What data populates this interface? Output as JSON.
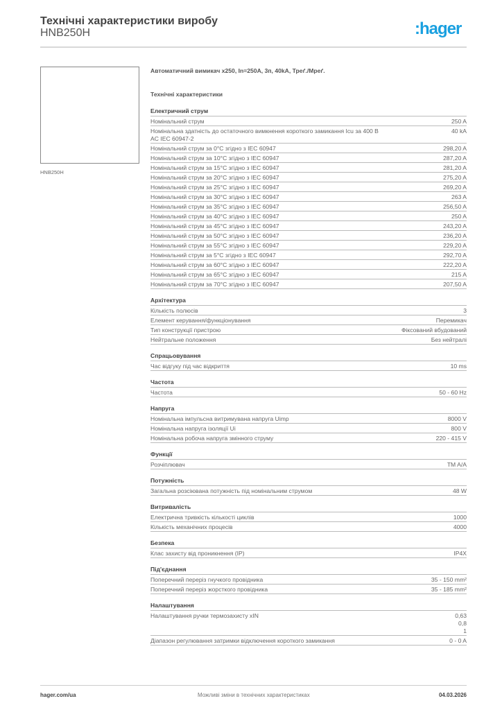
{
  "header": {
    "title": "Технічні характеристики виробу",
    "subtitle": "HNB250H",
    "logo": ":hager"
  },
  "product": {
    "image_label": "HNB250H",
    "description": "Автоматичний вимикач x250, In=250A, 3п, 40kA, Треґ./Мреґ.",
    "specs_title": "Технічні характеристики"
  },
  "sections": [
    {
      "title": "Електричний струм",
      "rows": [
        {
          "label": "Номінальний струм",
          "value": "250 A"
        },
        {
          "label": "Номінальна здатність до остаточного вимкнення короткого замикання Icu за 400 В AC IEC 60947-2",
          "value": "40 kA"
        },
        {
          "label": "Номінальний струм за 0°C згідно з IEC 60947",
          "value": "298,20 A"
        },
        {
          "label": "Номінальний струм за 10°C згідно з IEC 60947",
          "value": "287,20 A"
        },
        {
          "label": "Номінальний струм за 15°C згідно з IEC 60947",
          "value": "281,20 A"
        },
        {
          "label": "Номінальний струм за 20°C згідно з IEC 60947",
          "value": "275,20 A"
        },
        {
          "label": "Номінальний струм за 25°C згідно з IEC 60947",
          "value": "269,20 A"
        },
        {
          "label": "Номінальний струм за 30°C згідно з IEC 60947",
          "value": "263 A"
        },
        {
          "label": "Номінальний струм за 35°C згідно з IEC 60947",
          "value": "256,50 A"
        },
        {
          "label": "Номінальний струм за 40°C згідно з IEC 60947",
          "value": "250 A"
        },
        {
          "label": "Номінальний струм за 45°C згідно з IEC 60947",
          "value": "243,20 A"
        },
        {
          "label": "Номінальний струм за 50°C згідно з IEC 60947",
          "value": "236,20 A"
        },
        {
          "label": "Номінальний струм за 55°C згідно з IEC 60947",
          "value": "229,20 A"
        },
        {
          "label": "Номінальний струм за 5°C згідно з IEC 60947",
          "value": "292,70 A"
        },
        {
          "label": "Номінальний струм за 60°C згідно з IEC 60947",
          "value": "222,20 A"
        },
        {
          "label": "Номінальний струм за 65°C згідно з IEC 60947",
          "value": "215 A"
        },
        {
          "label": "Номінальний струм за 70°C згідно з IEC 60947",
          "value": "207,50 A"
        }
      ]
    },
    {
      "title": "Архітектура",
      "rows": [
        {
          "label": "Кількість полюсів",
          "value": "3"
        },
        {
          "label": "Елемент керування/функціонування",
          "value": "Перемикач"
        },
        {
          "label": "Тип конструкції пристрою",
          "value": "Фіксований вбудований"
        },
        {
          "label": "Нейтральне положення",
          "value": "Без нейтралі"
        }
      ]
    },
    {
      "title": "Спрацьовування",
      "rows": [
        {
          "label": "Час відгуку під час відкриття",
          "value": "10 ms"
        }
      ]
    },
    {
      "title": "Частота",
      "rows": [
        {
          "label": "Частота",
          "value": "50 - 60 Hz"
        }
      ]
    },
    {
      "title": "Напруга",
      "rows": [
        {
          "label": "Номінальна імпульсна витримувана напруга Uimp",
          "value": "8000 V"
        },
        {
          "label": "Номінальна напруга ізоляції Ui",
          "value": "800 V"
        },
        {
          "label": "Номінальна робоча напруга змінного струму",
          "value": "220 - 415 V"
        }
      ]
    },
    {
      "title": "Функції",
      "rows": [
        {
          "label": "Розчіплювач",
          "value": "TM A/A"
        }
      ]
    },
    {
      "title": "Потужність",
      "rows": [
        {
          "label": "Загальна розсіювана потужність під номінальним струмом",
          "value": "48 W"
        }
      ]
    },
    {
      "title": "Витривалість",
      "rows": [
        {
          "label": "Електрична тривкість  кількості циклів",
          "value": "1000"
        },
        {
          "label": "Кількість механічних процесів",
          "value": "4000"
        }
      ]
    },
    {
      "title": "Безпека",
      "rows": [
        {
          "label": "Клас захисту від проникнення (IP)",
          "value": "IP4X"
        }
      ]
    },
    {
      "title": "Під'єднання",
      "rows": [
        {
          "label": "Поперечний переріз гнучкого провідника",
          "value": "35 - 150 mm²"
        },
        {
          "label": "Поперечний переріз жорсткого провідника",
          "value": "35 - 185 mm²"
        }
      ]
    },
    {
      "title": "Налаштування",
      "rows": [
        {
          "label": "Налаштування ручки термозахисту xIN",
          "value": "0,63\n0,8\n1"
        },
        {
          "label": "Діапазон регулювання затримки відключення короткого замикання",
          "value": "0 - 0 A"
        }
      ]
    }
  ],
  "footer": {
    "website": "hager.com/ua",
    "note": "Можливі зміни в технічних характеристиках",
    "date": "04.03.2026"
  },
  "colors": {
    "brand": "#1aa0e0"
  }
}
